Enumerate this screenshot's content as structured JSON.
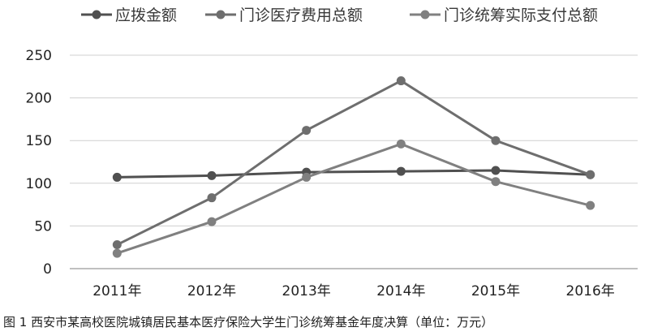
{
  "chart_data": {
    "type": "line",
    "title": "",
    "xlabel": "",
    "ylabel": "",
    "categories": [
      "2011年",
      "2012年",
      "2013年",
      "2014年",
      "2015年",
      "2016年"
    ],
    "yticks": [
      "0",
      "50",
      "100",
      "150",
      "200",
      "250"
    ],
    "ylim": [
      0,
      250
    ],
    "grid": true,
    "legend": "top",
    "series": [
      {
        "name": "应拨金额",
        "color": "#505050",
        "values": [
          107,
          109,
          113,
          114,
          115,
          110
        ]
      },
      {
        "name": "门诊医疗费用总额",
        "color": "#6e6e6e",
        "values": [
          28,
          83,
          162,
          220,
          150,
          110
        ]
      },
      {
        "name": "门诊统筹实际支付总额",
        "color": "#808080",
        "values": [
          18,
          55,
          107,
          146,
          102,
          74
        ]
      }
    ]
  },
  "caption": "图 1  西安市某高校医院城镇居民基本医疗保险大学生门诊统筹基金年度决算（单位：万元）"
}
